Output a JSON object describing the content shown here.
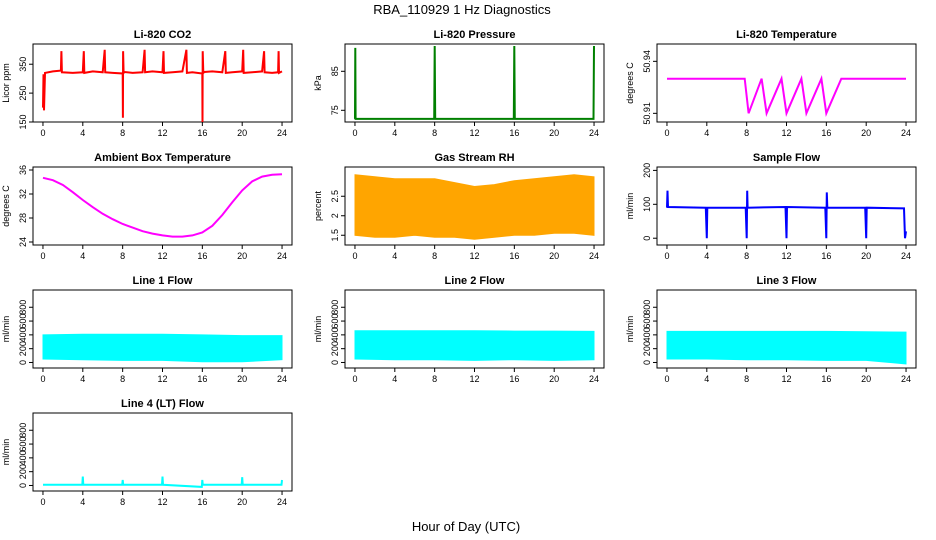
{
  "figure": {
    "title": "RBA_110929  1 Hz Diagnostics",
    "xlabel": "Hour of Day (UTC)"
  },
  "chart_data": [
    {
      "type": "line",
      "title": "Li-820 CO2",
      "ylabel": "Licor ppm",
      "color": "#ff0000",
      "xlim": [
        -1,
        25
      ],
      "ylim": [
        150,
        420
      ],
      "xticks": [
        0,
        4,
        8,
        12,
        16,
        20,
        24
      ],
      "yticks": [
        150,
        250,
        350
      ],
      "series": [
        {
          "x": [
            0,
            0.05,
            0.1,
            0.2,
            1,
            1.8,
            1.85,
            1.9,
            3,
            4,
            4.1,
            4.15,
            5,
            6,
            6.2,
            6.25,
            7,
            8,
            8.02,
            8.04,
            8.1,
            8.2,
            9,
            10,
            10.2,
            10.25,
            11,
            12,
            12.1,
            12.15,
            13,
            14,
            14.4,
            14.45,
            15,
            16,
            16.02,
            16.04,
            16.1,
            16.2,
            17,
            18,
            18.3,
            18.35,
            19,
            20,
            20.1,
            20.15,
            21,
            22,
            22.2,
            22.25,
            23,
            23.6,
            23.65,
            23.7,
            24
          ],
          "y": [
            200,
            315,
            190,
            320,
            325,
            328,
            395,
            322,
            320,
            322,
            395,
            320,
            325,
            322,
            400,
            322,
            320,
            318,
            165,
            395,
            320,
            323,
            320,
            322,
            400,
            322,
            325,
            322,
            395,
            320,
            322,
            325,
            400,
            320,
            322,
            318,
            150,
            395,
            320,
            323,
            325,
            322,
            395,
            320,
            322,
            325,
            400,
            320,
            322,
            325,
            395,
            322,
            320,
            322,
            395,
            320,
            325
          ]
        }
      ]
    },
    {
      "type": "line",
      "title": "Li-820 Pressure",
      "ylabel": "kPa",
      "color": "#008000",
      "xlim": [
        -1,
        25
      ],
      "ylim": [
        72,
        92
      ],
      "xticks": [
        0,
        4,
        8,
        12,
        16,
        20,
        24
      ],
      "yticks": [
        75,
        85
      ],
      "series": [
        {
          "x": [
            0,
            0.03,
            0.06,
            0.3,
            7.95,
            8,
            8.05,
            15.95,
            16,
            16.05,
            23.95,
            24
          ],
          "y": [
            72.8,
            91,
            72.8,
            72.8,
            72.8,
            91.5,
            72.8,
            72.8,
            91.5,
            72.8,
            72.8,
            91.5
          ]
        }
      ]
    },
    {
      "type": "line",
      "title": "Li-820 Temperature",
      "ylabel": "degrees C",
      "color": "#ff00ff",
      "xlim": [
        -1,
        25
      ],
      "ylim": [
        50.905,
        50.95
      ],
      "xticks": [
        0,
        4,
        8,
        12,
        16,
        20,
        24
      ],
      "yticks": [
        50.91,
        50.94
      ],
      "series": [
        {
          "x": [
            0,
            7.5,
            7.8,
            8.2,
            9.5,
            10,
            11.5,
            12,
            13.5,
            14,
            15.5,
            16,
            17.5,
            18,
            20,
            22,
            24
          ],
          "y": [
            50.93,
            50.93,
            50.93,
            50.91,
            50.93,
            50.91,
            50.93,
            50.91,
            50.93,
            50.91,
            50.93,
            50.91,
            50.93,
            50.93,
            50.93,
            50.93,
            50.93
          ]
        }
      ]
    },
    {
      "type": "line",
      "title": "Ambient Box Temperature",
      "ylabel": "degrees C",
      "color": "#ff00ff",
      "xlim": [
        -1,
        25
      ],
      "ylim": [
        23.5,
        36.5
      ],
      "xticks": [
        0,
        4,
        8,
        12,
        16,
        20,
        24
      ],
      "yticks": [
        24,
        28,
        32,
        36
      ],
      "series": [
        {
          "x": [
            0,
            1,
            2,
            3,
            4,
            5,
            6,
            7,
            8,
            9,
            10,
            11,
            12,
            13,
            14,
            15,
            16,
            17,
            18,
            19,
            20,
            21,
            22,
            23,
            24
          ],
          "y": [
            34.7,
            34.3,
            33.5,
            32.3,
            31,
            29.8,
            28.7,
            27.8,
            27,
            26.4,
            25.8,
            25.4,
            25.1,
            24.9,
            24.9,
            25.1,
            25.6,
            26.7,
            28.5,
            30.6,
            32.6,
            34.1,
            34.9,
            35.2,
            35.3
          ]
        }
      ]
    },
    {
      "type": "area",
      "title": "Gas Stream RH",
      "ylabel": "percent",
      "color": "#ffa500",
      "xlim": [
        -1,
        25
      ],
      "ylim": [
        1.25,
        3.25
      ],
      "xticks": [
        0,
        4,
        8,
        12,
        16,
        20,
        24
      ],
      "yticks": [
        1.5,
        2,
        2.5
      ],
      "series": [
        {
          "x": [
            0,
            2,
            4,
            6,
            8,
            10,
            12,
            14,
            16,
            18,
            20,
            22,
            24
          ],
          "y": [
            3.05,
            3.0,
            2.95,
            2.95,
            2.95,
            2.85,
            2.75,
            2.8,
            2.9,
            2.95,
            3.0,
            3.05,
            3.0
          ]
        },
        {
          "x": [
            0,
            2,
            4,
            6,
            8,
            10,
            12,
            14,
            16,
            18,
            20,
            22,
            24
          ],
          "y": [
            1.5,
            1.45,
            1.45,
            1.5,
            1.45,
            1.45,
            1.4,
            1.45,
            1.5,
            1.5,
            1.55,
            1.55,
            1.5
          ]
        }
      ]
    },
    {
      "type": "line",
      "title": "Sample Flow",
      "ylabel": "ml/min",
      "color": "#0000ff",
      "xlim": [
        -1,
        25
      ],
      "ylim": [
        -20,
        210
      ],
      "xticks": [
        0,
        4,
        8,
        12,
        16,
        20,
        24
      ],
      "yticks": [
        0,
        100,
        200
      ],
      "series": [
        {
          "x": [
            0,
            0.05,
            0.1,
            3.9,
            4,
            4.05,
            7.9,
            8,
            8.05,
            8.1,
            11.9,
            12,
            12.05,
            15.9,
            16,
            16.05,
            16.1,
            19.9,
            20,
            20.05,
            23.8,
            23.9,
            24
          ],
          "y": [
            90,
            140,
            92,
            90,
            0,
            90,
            90,
            0,
            140,
            90,
            92,
            0,
            92,
            90,
            0,
            135,
            90,
            90,
            0,
            90,
            88,
            0,
            20
          ]
        }
      ]
    },
    {
      "type": "area",
      "title": "Line 1 Flow",
      "ylabel": "ml/min",
      "color": "#00ffff",
      "xlim": [
        -1,
        25
      ],
      "ylim": [
        -80,
        1050
      ],
      "xticks": [
        0,
        4,
        8,
        12,
        16,
        20,
        24
      ],
      "yticks": [
        0,
        200,
        400,
        600,
        800
      ],
      "series": [
        {
          "x": [
            0,
            4,
            8,
            12,
            16,
            20,
            24
          ],
          "y": [
            400,
            410,
            410,
            410,
            400,
            390,
            390
          ]
        },
        {
          "x": [
            0,
            4,
            8,
            12,
            16,
            20,
            24
          ],
          "y": [
            50,
            40,
            30,
            30,
            10,
            10,
            40
          ]
        }
      ]
    },
    {
      "type": "area",
      "title": "Line 2 Flow",
      "ylabel": "ml/min",
      "color": "#00ffff",
      "xlim": [
        -1,
        25
      ],
      "ylim": [
        -80,
        1050
      ],
      "xticks": [
        0,
        4,
        8,
        12,
        16,
        20,
        24
      ],
      "yticks": [
        0,
        200,
        400,
        600,
        800
      ],
      "series": [
        {
          "x": [
            0,
            4,
            8,
            12,
            16,
            20,
            24
          ],
          "y": [
            460,
            460,
            460,
            460,
            455,
            455,
            450
          ]
        },
        {
          "x": [
            0,
            4,
            8,
            12,
            16,
            20,
            24
          ],
          "y": [
            50,
            40,
            40,
            30,
            40,
            30,
            40
          ]
        }
      ]
    },
    {
      "type": "area",
      "title": "Line 3 Flow",
      "ylabel": "ml/min",
      "color": "#00ffff",
      "xlim": [
        -1,
        25
      ],
      "ylim": [
        -80,
        1050
      ],
      "xticks": [
        0,
        4,
        8,
        12,
        16,
        20,
        24
      ],
      "yticks": [
        0,
        200,
        400,
        600,
        800
      ],
      "series": [
        {
          "x": [
            0,
            4,
            8,
            12,
            16,
            20,
            24
          ],
          "y": [
            450,
            450,
            450,
            450,
            450,
            445,
            440
          ]
        },
        {
          "x": [
            0,
            4,
            8,
            12,
            16,
            20,
            24
          ],
          "y": [
            50,
            50,
            40,
            40,
            30,
            30,
            -20
          ]
        }
      ]
    },
    {
      "type": "line",
      "title": "Line 4 (LT) Flow",
      "ylabel": "ml/min",
      "color": "#00ffff",
      "xlim": [
        -1,
        25
      ],
      "ylim": [
        -80,
        1050
      ],
      "xticks": [
        0,
        4,
        8,
        12,
        16,
        20,
        24
      ],
      "yticks": [
        0,
        200,
        400,
        600,
        800
      ],
      "series": [
        {
          "x": [
            0,
            3.95,
            4,
            4.05,
            7.95,
            8,
            8.05,
            11.95,
            12,
            12.05,
            15.95,
            16,
            16.05,
            19.95,
            20,
            20.05,
            23.95,
            24
          ],
          "y": [
            10,
            10,
            130,
            10,
            10,
            80,
            10,
            10,
            130,
            10,
            -20,
            80,
            10,
            10,
            120,
            10,
            10,
            80
          ]
        }
      ]
    }
  ]
}
